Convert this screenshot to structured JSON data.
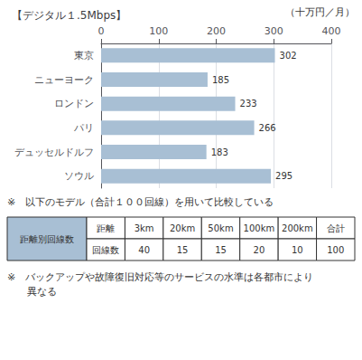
{
  "chart_data": {
    "type": "bar",
    "orientation": "horizontal",
    "title": "【デジタル１.5Mbps】",
    "unit_label": "（十万円／月）",
    "categories": [
      "東京",
      "ニューヨーク",
      "ロンドン",
      "パリ",
      "デュッセルドルフ",
      "ソウル"
    ],
    "values": [
      302,
      185,
      233,
      266,
      183,
      295
    ],
    "color": "#a8bfd4",
    "xlim": [
      0,
      400
    ],
    "xticks": [
      0,
      100,
      200,
      300,
      400
    ],
    "grid": true,
    "data_labels": true,
    "notes": [
      "※　以下のモデル（合計１００回線）を用いて比較している",
      "※　バックアップや故障復旧対応等のサービスの水準は各都市により\n　　異なる"
    ],
    "table": {
      "label": "距離別回線数",
      "columns": [
        "距離",
        "3km",
        "20km",
        "50km",
        "100km",
        "200km",
        "合計"
      ],
      "row": [
        "回線数",
        "40",
        "15",
        "15",
        "20",
        "10",
        "100"
      ]
    }
  }
}
